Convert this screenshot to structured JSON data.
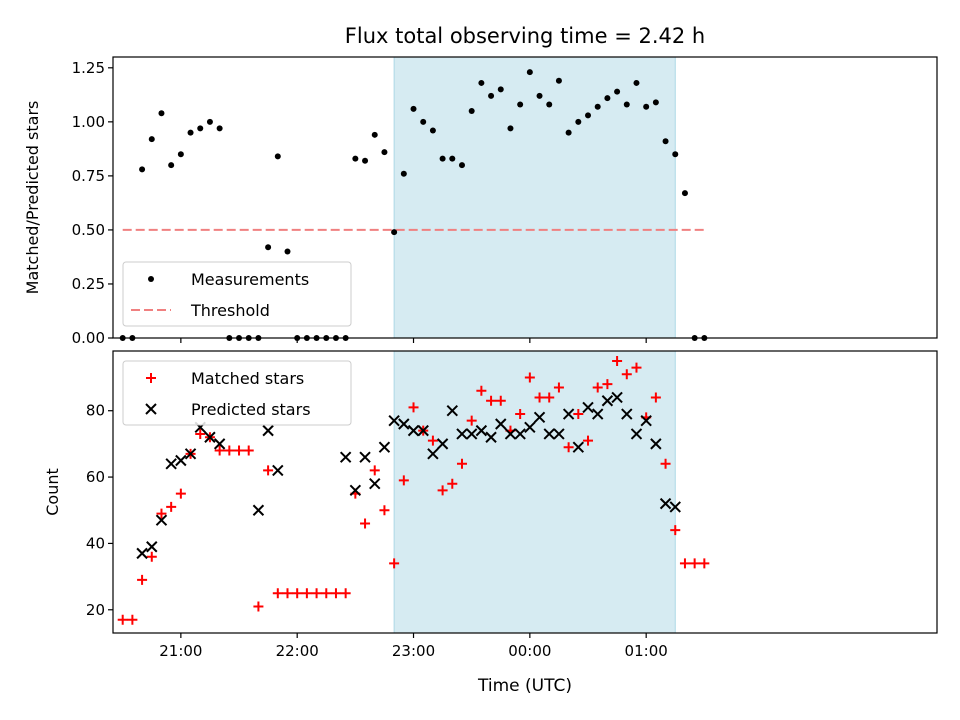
{
  "figure": {
    "title": "Flux total observing time = 2.42 h",
    "xlabel": "Time (UTC)"
  },
  "colors": {
    "measurement": "#000000",
    "threshold": "#f08080",
    "matched": "#ff0000",
    "predicted": "#000000",
    "span": "#add8e6"
  },
  "chart_data": [
    {
      "type": "scatter",
      "ylabel": "Matched/Predicted stars",
      "xlim_minutes": [
        -35,
        390
      ],
      "ylim": [
        0,
        1.3
      ],
      "x_ticks": [
        "21:00",
        "22:00",
        "23:00",
        "00:00",
        "01:00"
      ],
      "x_tick_minutes": [
        0,
        60,
        120,
        180,
        240
      ],
      "y_ticks": [
        "0.00",
        "0.25",
        "0.50",
        "0.75",
        "1.00",
        "1.25"
      ],
      "y_tick_values": [
        0,
        0.25,
        0.5,
        0.75,
        1.0,
        1.25
      ],
      "highlight_span_minutes": [
        110,
        255
      ],
      "legend": {
        "placement": "lower left",
        "entries": [
          "Measurements",
          "Threshold"
        ]
      },
      "threshold": {
        "name": "Threshold",
        "value": 0.5,
        "x_minutes": [
          -30,
          270
        ]
      },
      "series": [
        {
          "name": "Measurements",
          "x_minutes": [
            -30,
            -25,
            -20,
            -15,
            -10,
            -5,
            0,
            5,
            10,
            15,
            20,
            25,
            30,
            35,
            40,
            45,
            50,
            55,
            60,
            65,
            70,
            75,
            80,
            85,
            90,
            95,
            100,
            105,
            110,
            115,
            120,
            125,
            130,
            135,
            140,
            145,
            150,
            155,
            160,
            165,
            170,
            175,
            180,
            185,
            190,
            195,
            200,
            205,
            210,
            215,
            220,
            225,
            230,
            235,
            240,
            245,
            250,
            255,
            260,
            265,
            270
          ],
          "values": [
            0,
            0,
            0.78,
            0.92,
            1.04,
            0.8,
            0.85,
            0.95,
            0.97,
            1.0,
            0.97,
            0,
            0,
            0,
            0,
            0.42,
            0.84,
            0.4,
            0,
            0,
            0,
            0,
            0,
            0,
            0.83,
            0.82,
            0.94,
            0.86,
            0.49,
            0.76,
            1.06,
            1.0,
            0.96,
            0.83,
            0.83,
            0.8,
            1.05,
            1.18,
            1.12,
            1.15,
            0.97,
            1.08,
            1.23,
            1.12,
            1.08,
            1.19,
            0.95,
            1.0,
            1.03,
            1.07,
            1.11,
            1.14,
            1.08,
            1.18,
            1.07,
            1.09,
            0.91,
            0.85,
            0.67,
            0,
            0
          ]
        }
      ]
    },
    {
      "type": "scatter",
      "ylabel": "Count",
      "xlim_minutes": [
        -35,
        390
      ],
      "ylim": [
        13,
        98
      ],
      "x_ticks": [
        "21:00",
        "22:00",
        "23:00",
        "00:00",
        "01:00"
      ],
      "x_tick_minutes": [
        0,
        60,
        120,
        180,
        240
      ],
      "y_ticks": [
        "20",
        "40",
        "60",
        "80"
      ],
      "y_tick_values": [
        20,
        40,
        60,
        80
      ],
      "highlight_span_minutes": [
        110,
        255
      ],
      "legend": {
        "placement": "upper left",
        "entries": [
          "Matched stars",
          "Predicted stars"
        ]
      },
      "series": [
        {
          "name": "Matched stars",
          "marker": "plus",
          "x_minutes": [
            -30,
            -25,
            -20,
            -15,
            -10,
            -5,
            0,
            5,
            10,
            15,
            20,
            25,
            30,
            35,
            40,
            45,
            50,
            55,
            60,
            65,
            70,
            75,
            80,
            85,
            90,
            95,
            100,
            105,
            110,
            115,
            120,
            125,
            130,
            135,
            140,
            145,
            150,
            155,
            160,
            165,
            170,
            175,
            180,
            185,
            190,
            195,
            200,
            205,
            210,
            215,
            220,
            225,
            230,
            235,
            240,
            245,
            250,
            255,
            260,
            265,
            270
          ],
          "values": [
            17,
            17,
            29,
            36,
            49,
            51,
            55,
            67,
            73,
            72,
            68,
            68,
            68,
            68,
            21,
            62,
            25,
            25,
            25,
            25,
            25,
            25,
            25,
            25,
            55,
            46,
            62,
            50,
            34,
            59,
            81,
            74,
            71,
            56,
            58,
            64,
            77,
            86,
            83,
            83,
            74,
            79,
            90,
            84,
            84,
            87,
            69,
            79,
            71,
            87,
            88,
            95,
            91,
            93,
            78,
            84,
            64,
            44,
            34,
            34,
            34
          ]
        },
        {
          "name": "Predicted stars",
          "marker": "x",
          "x_minutes": [
            -20,
            -15,
            -10,
            -5,
            0,
            5,
            10,
            15,
            20,
            40,
            45,
            50,
            85,
            90,
            95,
            100,
            105,
            110,
            115,
            120,
            125,
            130,
            135,
            140,
            145,
            150,
            155,
            160,
            165,
            170,
            175,
            180,
            185,
            190,
            195,
            200,
            205,
            210,
            215,
            220,
            225,
            230,
            235,
            240,
            245,
            250,
            255
          ],
          "values": [
            37,
            39,
            47,
            64,
            65,
            67,
            75,
            72,
            70,
            50,
            74,
            62,
            66,
            56,
            66,
            58,
            69,
            77,
            76,
            74,
            74,
            67,
            70,
            80,
            73,
            73,
            74,
            72,
            76,
            73,
            73,
            75,
            78,
            73,
            73,
            79,
            69,
            81,
            79,
            83,
            84,
            79,
            73,
            77,
            70,
            52,
            51
          ]
        }
      ]
    }
  ]
}
